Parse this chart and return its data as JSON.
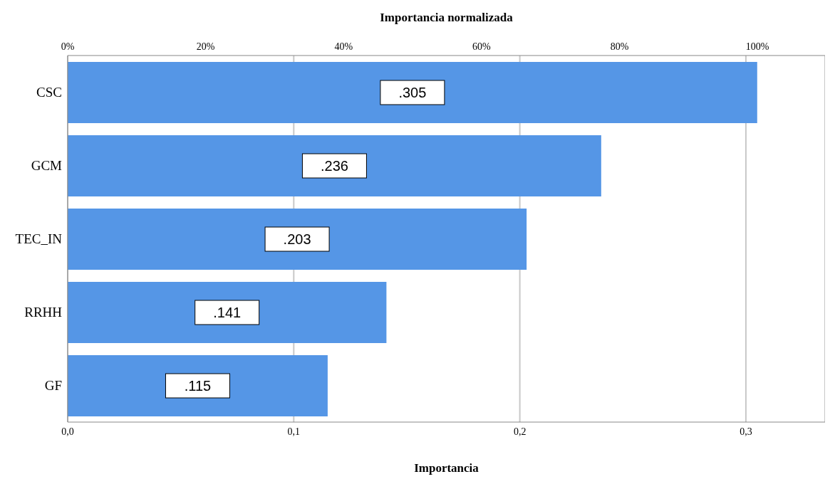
{
  "chart_data": {
    "type": "bar",
    "orientation": "horizontal",
    "xlabel": "Importancia",
    "x2label": "Importancia normalizada",
    "categories": [
      "CSC",
      "GCM",
      "TEC_IN",
      "RRHH",
      "GF"
    ],
    "values": [
      0.305,
      0.236,
      0.203,
      0.141,
      0.115
    ],
    "value_labels": [
      ".305",
      ".236",
      ".203",
      ".141",
      ".115"
    ],
    "color": "#5596e6",
    "xlim": [
      0,
      0.335
    ],
    "xticks": [
      {
        "value": 0,
        "label": "0,0"
      },
      {
        "value": 0.1,
        "label": "0,1"
      },
      {
        "value": 0.2,
        "label": "0,2"
      },
      {
        "value": 0.3,
        "label": "0,3"
      }
    ],
    "x2lim": [
      0,
      109.8
    ],
    "x2ticks": [
      {
        "value": 0,
        "label": "0%"
      },
      {
        "value": 20,
        "label": "20%"
      },
      {
        "value": 40,
        "label": "40%"
      },
      {
        "value": 60,
        "label": "60%"
      },
      {
        "value": 80,
        "label": "80%"
      },
      {
        "value": 100,
        "label": "100%"
      }
    ],
    "grid": "x",
    "legend": false
  }
}
